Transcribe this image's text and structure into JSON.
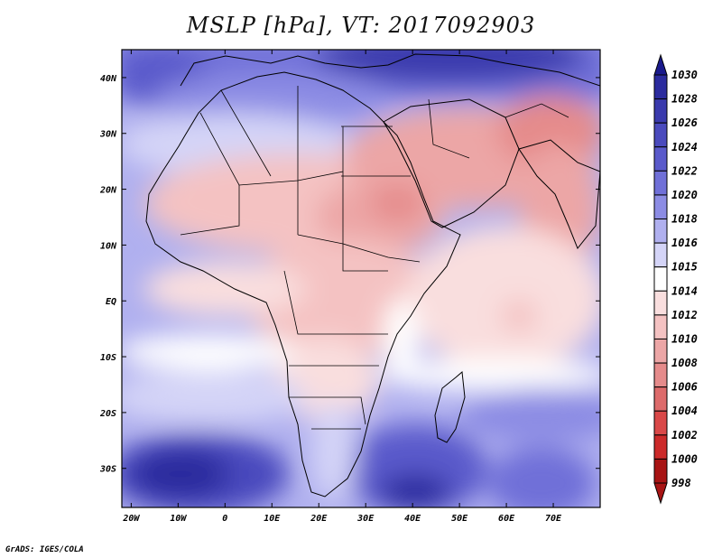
{
  "title": "MSLP [hPa], VT: 2017092903",
  "footer": "GrADS: IGES/COLA",
  "map": {
    "lon_range": [
      -22,
      80
    ],
    "lat_range": [
      -37,
      45
    ],
    "x_ticks": [
      {
        "lon": -20,
        "label": "20W"
      },
      {
        "lon": -10,
        "label": "10W"
      },
      {
        "lon": 0,
        "label": "0"
      },
      {
        "lon": 10,
        "label": "10E"
      },
      {
        "lon": 20,
        "label": "20E"
      },
      {
        "lon": 30,
        "label": "30E"
      },
      {
        "lon": 40,
        "label": "40E"
      },
      {
        "lon": 50,
        "label": "50E"
      },
      {
        "lon": 60,
        "label": "60E"
      },
      {
        "lon": 70,
        "label": "70E"
      }
    ],
    "y_ticks": [
      {
        "lat": 40,
        "label": "40N"
      },
      {
        "lat": 30,
        "label": "30N"
      },
      {
        "lat": 20,
        "label": "20N"
      },
      {
        "lat": 10,
        "label": "10N"
      },
      {
        "lat": 0,
        "label": "EQ"
      },
      {
        "lat": -10,
        "label": "10S"
      },
      {
        "lat": -20,
        "label": "20S"
      },
      {
        "lat": -30,
        "label": "30S"
      }
    ]
  },
  "colorbar": {
    "labels": [
      "1030",
      "1028",
      "1026",
      "1024",
      "1022",
      "1020",
      "1018",
      "1016",
      "1015",
      "1014",
      "1012",
      "1010",
      "1008",
      "1006",
      "1004",
      "1002",
      "1000",
      "998"
    ],
    "colors": [
      "#1a1a8c",
      "#2b2b9e",
      "#3a3aad",
      "#4a4abd",
      "#5a5acb",
      "#7070d8",
      "#8c8ce4",
      "#b0b0ef",
      "#d4d4f7",
      "#ffffff",
      "#f9dede",
      "#f4c2c2",
      "#eca6a6",
      "#e58b8b",
      "#dd6b6b",
      "#d94848",
      "#cc2a2a",
      "#a81414"
    ]
  }
}
